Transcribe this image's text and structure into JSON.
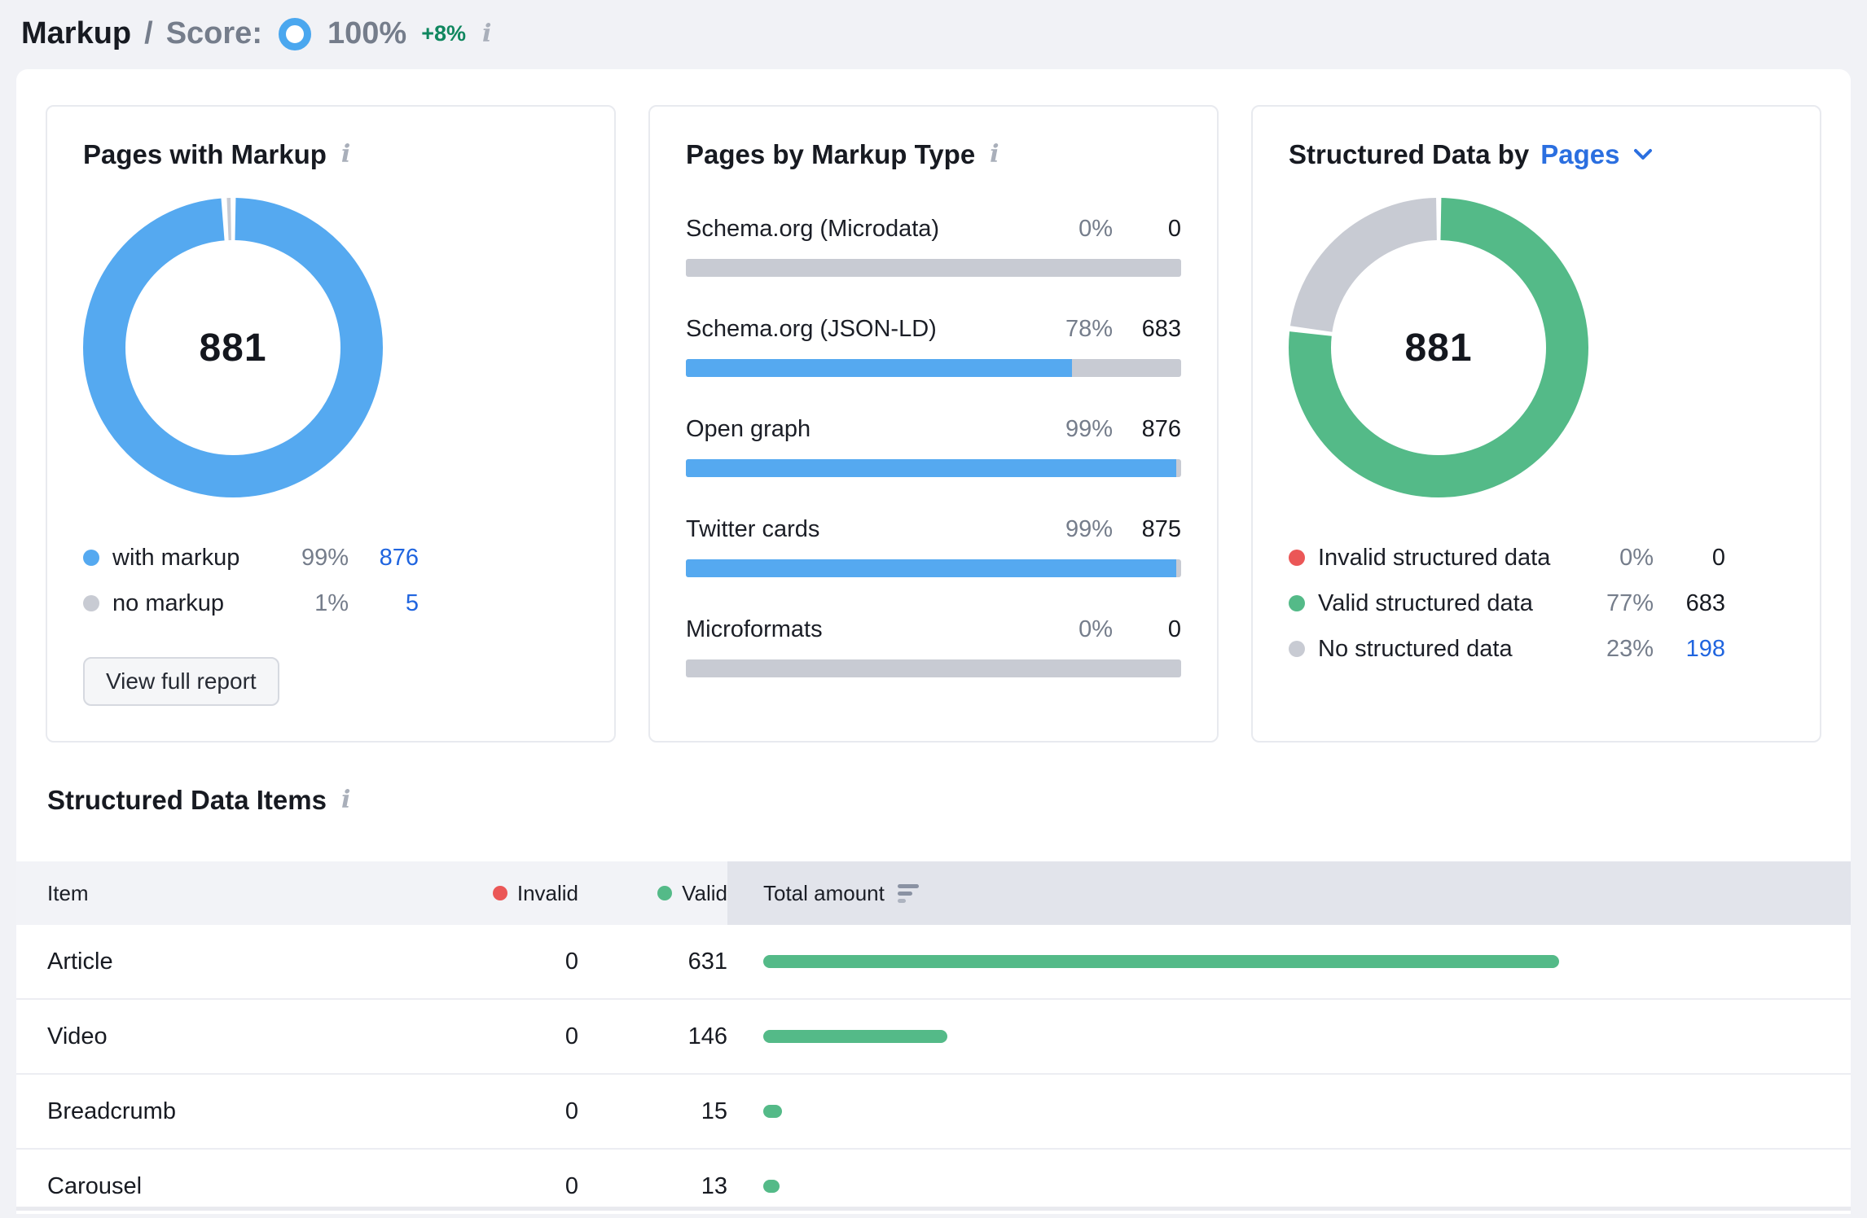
{
  "colors": {
    "blue": "#55A9F0",
    "green": "#54BA88",
    "gray": "#C8CBD3",
    "red": "#EB5757",
    "link": "#2065DF"
  },
  "header": {
    "title": "Markup",
    "separator": "/",
    "score_label": "Score:",
    "score_value": "100%",
    "score_delta": "+8%",
    "info_icon": "i"
  },
  "cards": {
    "pages_with_markup": {
      "title": "Pages with Markup",
      "total": "881",
      "segments": [
        {
          "label": "with markup",
          "pct": 99,
          "pct_label": "99%",
          "value": "876",
          "color": "blue",
          "value_link": true
        },
        {
          "label": "no markup",
          "pct": 1,
          "pct_label": "1%",
          "value": "5",
          "color": "gray",
          "value_link": true
        }
      ],
      "button": "View full report"
    },
    "pages_by_markup_type": {
      "title": "Pages by Markup Type",
      "rows": [
        {
          "label": "Schema.org (Microdata)",
          "pct": 0,
          "pct_label": "0%",
          "value": "0",
          "value_link": false
        },
        {
          "label": "Schema.org (JSON-LD)",
          "pct": 78,
          "pct_label": "78%",
          "value": "683",
          "value_link": true
        },
        {
          "label": "Open graph",
          "pct": 99,
          "pct_label": "99%",
          "value": "876",
          "value_link": true
        },
        {
          "label": "Twitter cards",
          "pct": 99,
          "pct_label": "99%",
          "value": "875",
          "value_link": true
        },
        {
          "label": "Microformats",
          "pct": 0,
          "pct_label": "0%",
          "value": "0",
          "value_link": false
        }
      ]
    },
    "structured_data_by": {
      "title_prefix": "Structured Data by",
      "title_selector": "Pages",
      "total": "881",
      "segments": [
        {
          "label": "Invalid structured data",
          "pct": 0,
          "pct_label": "0%",
          "value": "0",
          "color": "red",
          "value_link": false
        },
        {
          "label": "Valid structured data",
          "pct": 77,
          "pct_label": "77%",
          "value": "683",
          "color": "green",
          "value_link": false
        },
        {
          "label": "No structured data",
          "pct": 23,
          "pct_label": "23%",
          "value": "198",
          "color": "gray",
          "value_link": true
        }
      ]
    }
  },
  "items_section": {
    "title": "Structured Data Items",
    "table": {
      "col_item": "Item",
      "col_invalid": "Invalid",
      "col_valid": "Valid",
      "col_total": "Total amount",
      "rows": [
        {
          "item": "Article",
          "invalid": 0,
          "valid": 631
        },
        {
          "item": "Video",
          "invalid": 0,
          "valid": 146
        },
        {
          "item": "Breadcrumb",
          "invalid": 0,
          "valid": 15
        },
        {
          "item": "Carousel",
          "invalid": 0,
          "valid": 13
        }
      ]
    }
  },
  "chart_data": [
    {
      "type": "pie",
      "title": "Pages with Markup",
      "center_total": 881,
      "labels": [
        "with markup",
        "no markup"
      ],
      "values_pct": [
        99,
        1
      ],
      "values": [
        876,
        5
      ],
      "colors": [
        "#55A9F0",
        "#C8CBD3"
      ]
    },
    {
      "type": "bar",
      "title": "Pages by Markup Type",
      "categories": [
        "Schema.org (Microdata)",
        "Schema.org (JSON-LD)",
        "Open graph",
        "Twitter cards",
        "Microformats"
      ],
      "values_pct": [
        0,
        78,
        99,
        99,
        0
      ],
      "values": [
        0,
        683,
        876,
        875,
        0
      ],
      "xlim": [
        0,
        100
      ]
    },
    {
      "type": "pie",
      "title": "Structured Data by Pages",
      "center_total": 881,
      "labels": [
        "Invalid structured data",
        "Valid structured data",
        "No structured data"
      ],
      "values_pct": [
        0,
        77,
        23
      ],
      "values": [
        0,
        683,
        198
      ],
      "colors": [
        "#EB5757",
        "#54BA88",
        "#C8CBD3"
      ]
    },
    {
      "type": "table",
      "title": "Structured Data Items",
      "columns": [
        "Item",
        "Invalid",
        "Valid",
        "Total amount"
      ],
      "rows": [
        [
          "Article",
          0,
          631
        ],
        [
          "Video",
          0,
          146
        ],
        [
          "Breadcrumb",
          0,
          15
        ],
        [
          "Carousel",
          0,
          13
        ]
      ]
    }
  ]
}
